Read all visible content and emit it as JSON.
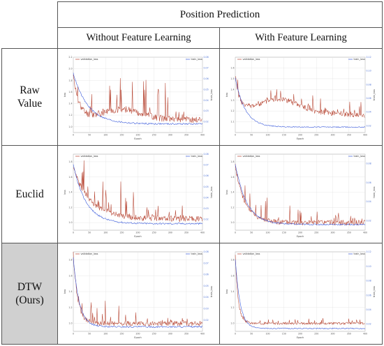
{
  "header": {
    "title": "Position Prediction",
    "col_without": "Without Feature Learning",
    "col_with": "With Feature Learning"
  },
  "rows": [
    {
      "label_line1": "Raw",
      "label_line2": "Value"
    },
    {
      "label_line1": "Euclid",
      "label_line2": ""
    },
    {
      "label_line1": "DTW",
      "label_line2": "(Ours)"
    }
  ],
  "colors": {
    "validation": "#b5412e",
    "train": "#3b5bdb",
    "row_label_shade": "#d0d0d0"
  },
  "chart_data": [
    {
      "id": "raw_without",
      "type": "line",
      "xlabel": "Epoch",
      "ylabel": "loss",
      "y2label": "train_loss",
      "xlim": [
        0,
        400
      ],
      "xticks": [
        0,
        50,
        100,
        150,
        200,
        250,
        300,
        350,
        400
      ],
      "ylim": [
        0.9,
        2.2
      ],
      "yticks": [
        1.0,
        1.2,
        1.4,
        1.6,
        1.8,
        2.0,
        2.2
      ],
      "y2lim": [
        0.01,
        0.08
      ],
      "y2ticks": [
        0.02,
        0.03,
        0.04,
        0.05,
        0.06,
        0.07,
        0.08
      ],
      "series": [
        {
          "name": "validation_loss",
          "axis": "left",
          "profile": "raw_without",
          "seed": 11
        },
        {
          "name": "train_loss",
          "axis": "right",
          "start": 0.065,
          "end": 0.018,
          "decay": 45
        }
      ]
    },
    {
      "id": "raw_with",
      "type": "line",
      "xlabel": "Epoch",
      "ylabel": "loss",
      "y2label": "train_loss",
      "xlim": [
        0,
        400
      ],
      "xticks": [
        0,
        50,
        100,
        150,
        200,
        250,
        300,
        350,
        400
      ],
      "ylim": [
        1.0,
        1.7
      ],
      "yticks": [
        1.1,
        1.2,
        1.3,
        1.4,
        1.5,
        1.6
      ],
      "y2lim": [
        0.01,
        0.12
      ],
      "y2ticks": [
        0.02,
        0.04,
        0.06,
        0.08,
        0.1,
        0.12
      ],
      "series": [
        {
          "name": "validation_loss",
          "axis": "left",
          "profile": "raw_with",
          "seed": 23
        },
        {
          "name": "train_loss",
          "axis": "right",
          "start": 0.09,
          "end": 0.018,
          "decay": 30
        }
      ]
    },
    {
      "id": "euclid_without",
      "type": "line",
      "xlabel": "Epoch",
      "ylabel": "loss",
      "y2label": "train_loss",
      "xlim": [
        0,
        400
      ],
      "xticks": [
        0,
        50,
        100,
        150,
        200,
        250,
        300,
        350,
        400
      ],
      "ylim": [
        0.9,
        1.9
      ],
      "yticks": [
        1.0,
        1.2,
        1.4,
        1.6,
        1.8
      ],
      "y2lim": [
        0.01,
        0.08
      ],
      "y2ticks": [
        0.02,
        0.03,
        0.04,
        0.05,
        0.06,
        0.07,
        0.08
      ],
      "series": [
        {
          "name": "validation_loss",
          "axis": "left",
          "profile": "euclid_without",
          "seed": 37
        },
        {
          "name": "train_loss",
          "axis": "right",
          "start": 0.07,
          "end": 0.016,
          "decay": 40
        }
      ]
    },
    {
      "id": "euclid_with",
      "type": "line",
      "xlabel": "Epoch",
      "ylabel": "loss",
      "y2label": "train_loss",
      "xlim": [
        0,
        400
      ],
      "xticks": [
        0,
        50,
        100,
        150,
        200,
        250,
        300,
        350,
        400
      ],
      "ylim": [
        0.9,
        1.9
      ],
      "yticks": [
        1.0,
        1.2,
        1.4,
        1.6,
        1.8
      ],
      "y2lim": [
        0.01,
        0.09
      ],
      "y2ticks": [
        0.02,
        0.04,
        0.06,
        0.08
      ],
      "series": [
        {
          "name": "validation_loss",
          "axis": "left",
          "profile": "euclid_with",
          "seed": 41
        },
        {
          "name": "train_loss",
          "axis": "right",
          "start": 0.08,
          "end": 0.016,
          "decay": 35
        }
      ]
    },
    {
      "id": "dtw_without",
      "type": "line",
      "xlabel": "Epoch",
      "ylabel": "loss",
      "y2label": "train_loss",
      "xlim": [
        0,
        400
      ],
      "xticks": [
        0,
        50,
        100,
        150,
        200,
        250,
        300,
        350,
        400
      ],
      "ylim": [
        0.9,
        1.9
      ],
      "yticks": [
        1.0,
        1.2,
        1.4,
        1.6,
        1.8
      ],
      "y2lim": [
        0.01,
        0.08
      ],
      "y2ticks": [
        0.02,
        0.03,
        0.04,
        0.05,
        0.06,
        0.07,
        0.08
      ],
      "series": [
        {
          "name": "validation_loss",
          "axis": "left",
          "profile": "dtw_without",
          "seed": 53
        },
        {
          "name": "train_loss",
          "axis": "right",
          "start": 0.075,
          "end": 0.014,
          "decay": 18
        }
      ]
    },
    {
      "id": "dtw_with",
      "type": "line",
      "xlabel": "Epoch",
      "ylabel": "loss",
      "y2label": "train_loss",
      "xlim": [
        0,
        400
      ],
      "xticks": [
        0,
        50,
        100,
        150,
        200,
        250,
        300,
        350,
        400
      ],
      "ylim": [
        0.9,
        1.9
      ],
      "yticks": [
        1.0,
        1.2,
        1.4,
        1.6,
        1.8
      ],
      "y2lim": [
        0.01,
        0.12
      ],
      "y2ticks": [
        0.02,
        0.04,
        0.06,
        0.08,
        0.1,
        0.12
      ],
      "series": [
        {
          "name": "validation_loss",
          "axis": "left",
          "profile": "dtw_with",
          "seed": 67
        },
        {
          "name": "train_loss",
          "axis": "right",
          "start": 0.11,
          "end": 0.014,
          "decay": 15
        }
      ]
    }
  ]
}
